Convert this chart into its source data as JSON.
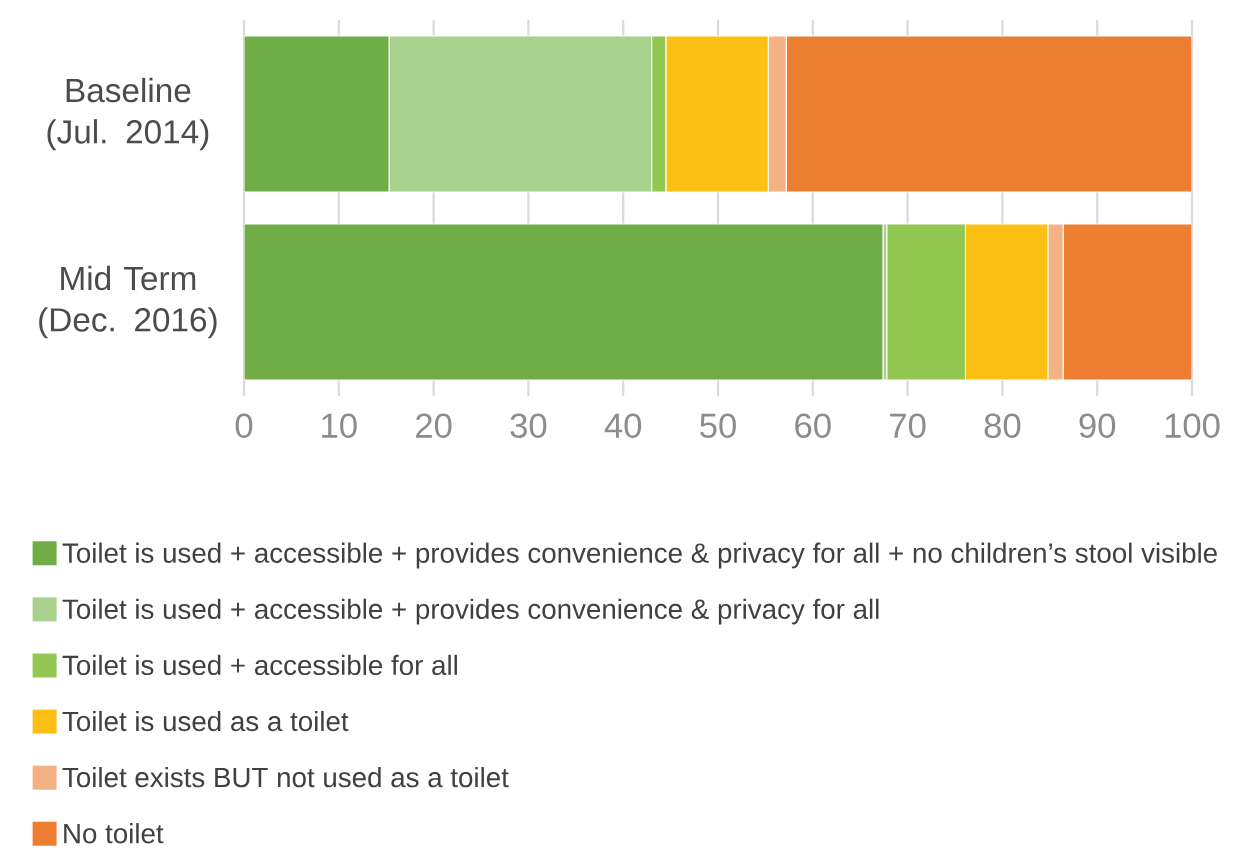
{
  "chart_data": {
    "type": "bar",
    "orientation": "horizontal",
    "stacked": true,
    "categories": [
      "Baseline (Jul. 2014)",
      "Mid Term (Dec. 2016)"
    ],
    "series": [
      {
        "name": "Toilet is used + accessible + provides convenience & privacy for all + no children’s stool visible",
        "color": "#70ad47",
        "values": [
          15.3,
          67.4
        ]
      },
      {
        "name": "Toilet is used + accessible + provides convenience & privacy for all",
        "color": "#a9d18e",
        "values": [
          27.7,
          0.4
        ]
      },
      {
        "name": "Toilet is used + accessible for all",
        "color": "#92c851",
        "values": [
          1.5,
          8.3
        ]
      },
      {
        "name": "Toilet is used as a toilet",
        "color": "#fcbf14",
        "values": [
          10.8,
          8.7
        ]
      },
      {
        "name": "Toilet exists BUT not used as a toilet",
        "color": "#f4b183",
        "values": [
          1.9,
          1.6
        ]
      },
      {
        "name": "No toilet",
        "color": "#ed7d31",
        "values": [
          42.8,
          13.6
        ]
      }
    ],
    "xlim": [
      0,
      100
    ],
    "xticks": [
      0,
      10,
      20,
      30,
      40,
      50,
      60,
      70,
      80,
      90,
      100
    ],
    "grid": "x",
    "legend": "bottom"
  }
}
